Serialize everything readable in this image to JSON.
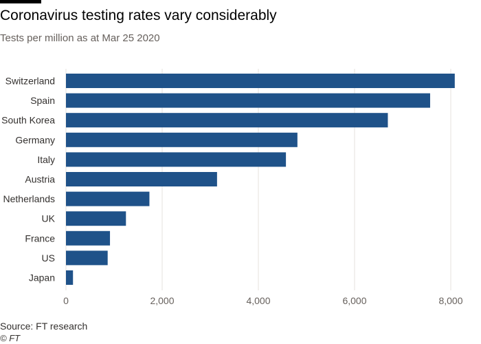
{
  "header": {
    "title": "Coronavirus testing rates vary considerably",
    "subtitle": "Tests per million as at Mar 25 2020"
  },
  "footer": {
    "source": "Source: FT research",
    "credit": "© FT"
  },
  "colors": {
    "bar": "#1f5289",
    "grid": "#e6e1dc",
    "accent_bar": "#000000"
  },
  "chart_data": {
    "type": "bar",
    "orientation": "horizontal",
    "title": "Coronavirus testing rates vary considerably",
    "subtitle": "Tests per million as at Mar 25 2020",
    "categories": [
      "Switzerland",
      "Spain",
      "South Korea",
      "Germany",
      "Italy",
      "Austria",
      "Netherlands",
      "UK",
      "France",
      "US",
      "Japan"
    ],
    "values": [
      8083,
      7571,
      6692,
      4812,
      4573,
      3141,
      1735,
      1247,
      915,
      867,
      146
    ],
    "xlim": [
      0,
      8000
    ],
    "x_ticks": [
      0,
      2000,
      4000,
      6000,
      8000
    ],
    "x_tick_labels": [
      "0",
      "2,000",
      "4,000",
      "6,000",
      "8,000"
    ],
    "grid": true,
    "legend": "none"
  }
}
